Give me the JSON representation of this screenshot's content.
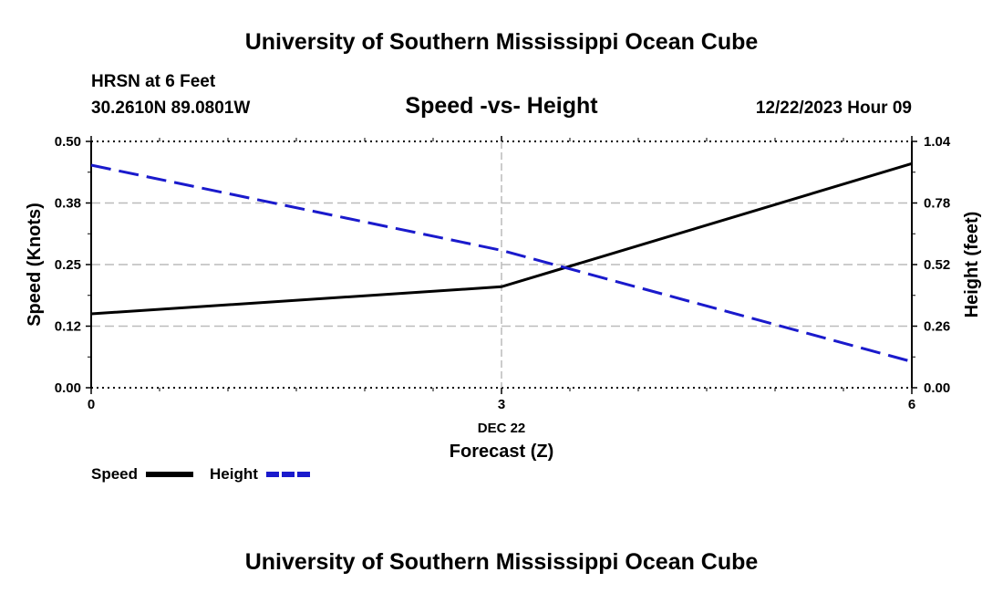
{
  "header": {
    "title": "University of Southern Mississippi Ocean Cube",
    "station": "HRSN at 6 Feet",
    "coords": "30.2610N  89.0801W",
    "datetime": "12/22/2023 Hour 09"
  },
  "footer": {
    "title": "University of Southern Mississippi Ocean Cube"
  },
  "chart_data": {
    "type": "line",
    "title": "Speed -vs- Height",
    "xlabel": "Forecast (Z)",
    "xlabel_date": "DEC 22",
    "ylabel_left": "Speed (Knots)",
    "ylabel_right": "Height (feet)",
    "x": [
      0,
      3,
      6
    ],
    "x_ticks": [
      "0",
      "3",
      "6"
    ],
    "xlim": [
      0,
      6
    ],
    "ylim_left": [
      0,
      0.5
    ],
    "ylim_right": [
      0,
      1.04
    ],
    "y_ticks_left": [
      "0.00",
      "0.12",
      "0.25",
      "0.38",
      "0.50"
    ],
    "y_ticks_right": [
      "0.00",
      "0.26",
      "0.52",
      "0.78",
      "1.04"
    ],
    "grid": true,
    "series": [
      {
        "name": "Speed",
        "axis": "left",
        "color": "#000000",
        "style": "solid",
        "values": [
          0.15,
          0.205,
          0.455
        ]
      },
      {
        "name": "Height",
        "axis": "right",
        "color": "#1a1acc",
        "style": "dashed",
        "values": [
          0.94,
          0.58,
          0.11
        ]
      }
    ],
    "legend": [
      {
        "label": "Speed",
        "color": "#000000",
        "style": "solid"
      },
      {
        "label": "Height",
        "color": "#1a1acc",
        "style": "dashed"
      }
    ]
  }
}
